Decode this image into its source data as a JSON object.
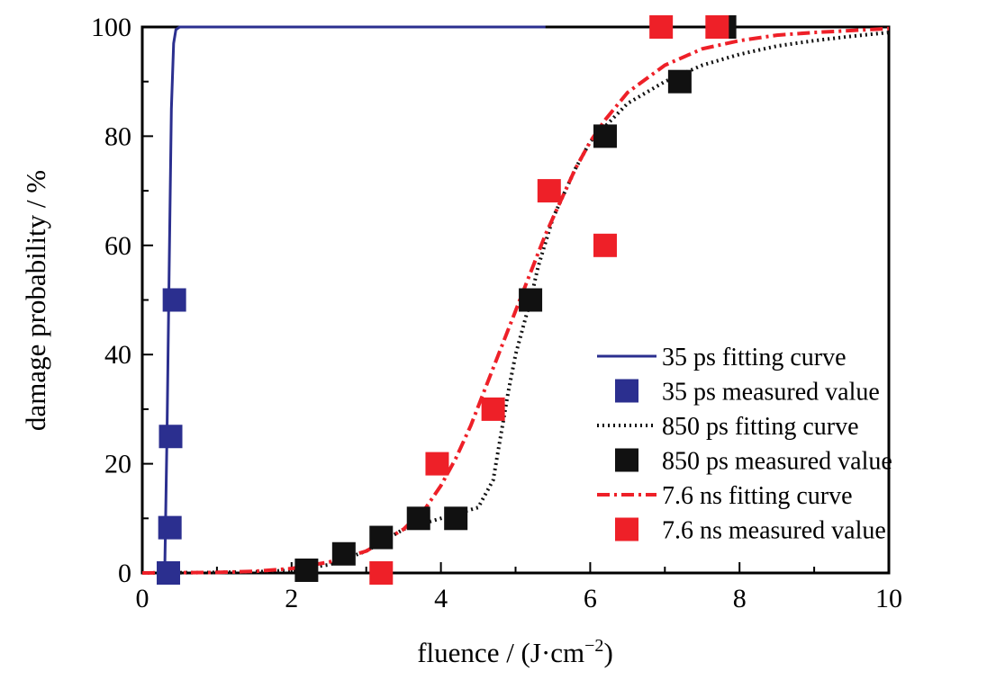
{
  "chart_data": {
    "type": "scatter",
    "xlabel": "fluence / (J·cm",
    "xlabel_sup": "−2",
    "xlabel_end": ")",
    "ylabel": "damage probability / %",
    "xlim": [
      0,
      10
    ],
    "ylim": [
      0,
      100
    ],
    "x_ticks": [
      0,
      2,
      4,
      6,
      8,
      10
    ],
    "y_ticks": [
      0,
      20,
      40,
      60,
      80,
      100
    ],
    "legend_position": "bottom-right",
    "colors": {
      "blue": "#2b2f8f",
      "black": "#111111",
      "red": "#ee2028"
    },
    "series": [
      {
        "name": "35 ps fitting curve",
        "kind": "line",
        "style": "solid",
        "color": "#2b2f8f",
        "x": [
          0.3,
          0.33,
          0.36,
          0.39,
          0.42,
          0.45,
          0.5,
          1.0,
          2.0,
          3.0,
          4.0,
          5.0,
          5.4
        ],
        "y": [
          0,
          25,
          55,
          85,
          97,
          99.5,
          100,
          100,
          100,
          100,
          100,
          100,
          100
        ]
      },
      {
        "name": "35 ps measured value",
        "kind": "scatter",
        "color": "#2b2f8f",
        "x": [
          0.35,
          0.37,
          0.38,
          0.43
        ],
        "y": [
          0,
          8.3,
          25,
          50
        ]
      },
      {
        "name": "850 ps fitting curve",
        "kind": "line",
        "style": "dotted",
        "color": "#111111",
        "x": [
          0,
          1.0,
          1.5,
          2.0,
          2.5,
          3.0,
          3.5,
          4.0,
          4.5,
          4.7,
          4.8,
          4.9,
          5.0,
          5.1,
          5.2,
          5.3,
          5.5,
          5.8,
          6.0,
          6.5,
          7.0,
          7.5,
          8.0,
          8.5,
          9.0,
          9.5,
          10.0
        ],
        "y": [
          0,
          0.1,
          0.2,
          0.5,
          1.5,
          4,
          8,
          10,
          12,
          17,
          25,
          33,
          40,
          45,
          50,
          56,
          65,
          74,
          79,
          86,
          90,
          93,
          95,
          96.5,
          97.5,
          98.3,
          99
        ]
      },
      {
        "name": "850 ps measured value",
        "kind": "scatter",
        "color": "#111111",
        "x": [
          2.2,
          2.7,
          3.2,
          3.7,
          4.2,
          5.2,
          6.2,
          7.2,
          7.8
        ],
        "y": [
          0.5,
          3.5,
          6.5,
          10,
          10,
          50,
          80,
          90,
          100
        ]
      },
      {
        "name": "7.6 ns fitting curve",
        "kind": "line",
        "style": "dashdot",
        "color": "#ee2028",
        "x": [
          0,
          1.0,
          1.5,
          2.0,
          2.5,
          3.0,
          3.5,
          3.8,
          4.0,
          4.2,
          4.4,
          4.6,
          4.8,
          5.0,
          5.2,
          5.4,
          5.6,
          5.8,
          6.0,
          6.2,
          6.5,
          7.0,
          7.5,
          8.0,
          8.5,
          9.0,
          10.0
        ],
        "y": [
          0,
          0.1,
          0.3,
          0.8,
          2,
          4,
          8,
          12,
          16,
          21,
          27,
          34,
          41,
          48,
          55,
          62,
          68,
          74,
          79,
          83,
          88,
          93,
          96,
          97.5,
          98.5,
          99,
          99.7
        ]
      },
      {
        "name": "7.6 ns measured value",
        "kind": "scatter",
        "color": "#ee2028",
        "x": [
          3.2,
          3.95,
          4.7,
          5.45,
          6.2,
          6.95,
          7.7
        ],
        "y": [
          0,
          20,
          30,
          70,
          60,
          100,
          100
        ]
      }
    ]
  }
}
